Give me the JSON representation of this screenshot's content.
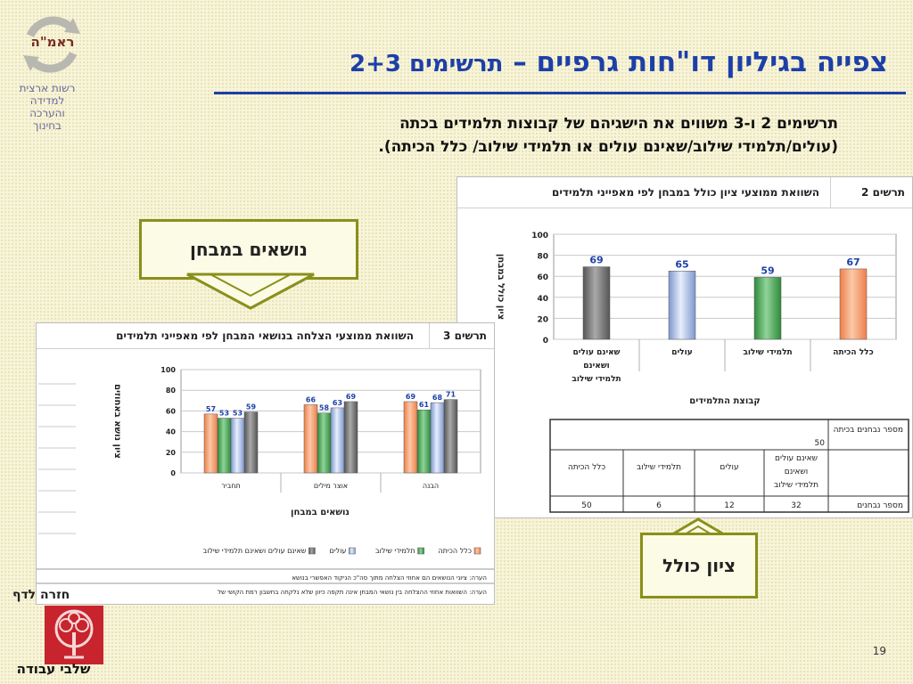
{
  "header": {
    "logo_text": "ראמ\"ה",
    "org_lines": [
      "רשות ארצית",
      "למדידה",
      "והערכה",
      "בחינוך"
    ],
    "title_main": "צפייה בגיליון דו\"חות גרפיים",
    "title_dash": " – ",
    "title_sub": "תרשימים 2+3"
  },
  "description": {
    "line1": "תרשימים 2 ו-3 משווים את הישגיהם של קבוצות תלמידים בכתה",
    "line2": "(עולים/תלמידי שילוב/שאינם עולים או תלמידי שילוב/ כלל הכיתה)."
  },
  "callouts": {
    "topics": "נושאים במבחן",
    "overall": "ציון כולל"
  },
  "footer": {
    "back_link": "חזרה לדף",
    "tree_caption": "שלבי עבודה",
    "page_number": "19"
  },
  "colors": {
    "title_blue": "#1d3fa8",
    "orange": "#f4a070",
    "green": "#3f9a4a",
    "blue": "#8aa4d8",
    "gray": "#6a6a6a"
  },
  "chart_data": [
    {
      "type": "bar",
      "sheet_num": "תרשים 2",
      "title": "השוואת ממוצעי ציון כולל במבחן לפי מאפייני תלמידים",
      "ylabel": "ציון כולל במבחן",
      "xlabel": "קבוצת התלמידים",
      "ylim": [
        0,
        100
      ],
      "yticks": [
        0,
        20,
        40,
        60,
        80,
        100
      ],
      "categories": [
        "כלל הכיתה",
        "תלמידי שילוב",
        "עולים",
        "שאינם עולים ושאינם תלמידי שילוב"
      ],
      "values": [
        67,
        59,
        65,
        69
      ],
      "colors": [
        "orange",
        "green",
        "blue",
        "gray"
      ],
      "grid": true,
      "table": {
        "header_label": "מספר נבחנים בכיתה",
        "header_value": "50",
        "columns": [
          "שאינם עולים ושאינם תלמידי שילוב",
          "עולים",
          "תלמידי שילוב",
          "כלל הכיתה"
        ],
        "row_label": "מספר נבחנים",
        "row_values": [
          "32",
          "12",
          "6",
          "50"
        ]
      }
    },
    {
      "type": "bar",
      "sheet_num": "תרשים 3",
      "title": "השוואת ממוצעי הצלחה בנושאי המבחן לפי מאפייני תלמידים",
      "ylabel": "ציון נושא באחוזים",
      "xlabel": "נושאים במבחן",
      "ylim": [
        0,
        100
      ],
      "yticks": [
        0,
        20,
        40,
        60,
        80,
        100
      ],
      "categories": [
        "תחביר",
        "אוצר מילים",
        "הבנה"
      ],
      "series": [
        {
          "name": "כלל הכיתה",
          "color": "orange",
          "values": [
            57,
            66,
            69
          ]
        },
        {
          "name": "תלמידי שילוב",
          "color": "green",
          "values": [
            53,
            58,
            61
          ]
        },
        {
          "name": "עולים",
          "color": "blue",
          "values": [
            53,
            63,
            68
          ]
        },
        {
          "name": "שאינם עולים ושאינם תלמידי שילוב",
          "color": "gray",
          "values": [
            59,
            69,
            71
          ]
        }
      ],
      "grid": true,
      "legend": "bottom",
      "notes": [
        "הערה: ציוני הנושאים הם אחוזי הצלחה מתוך סה\"כ הניקוד האפשרי בנושא",
        "הערה: השוואות אחוזי ההצלחה בין נושאי המבחן אינה תקפה כיוון שלא נלקחה בחשבון רמת הקושי של"
      ]
    }
  ]
}
